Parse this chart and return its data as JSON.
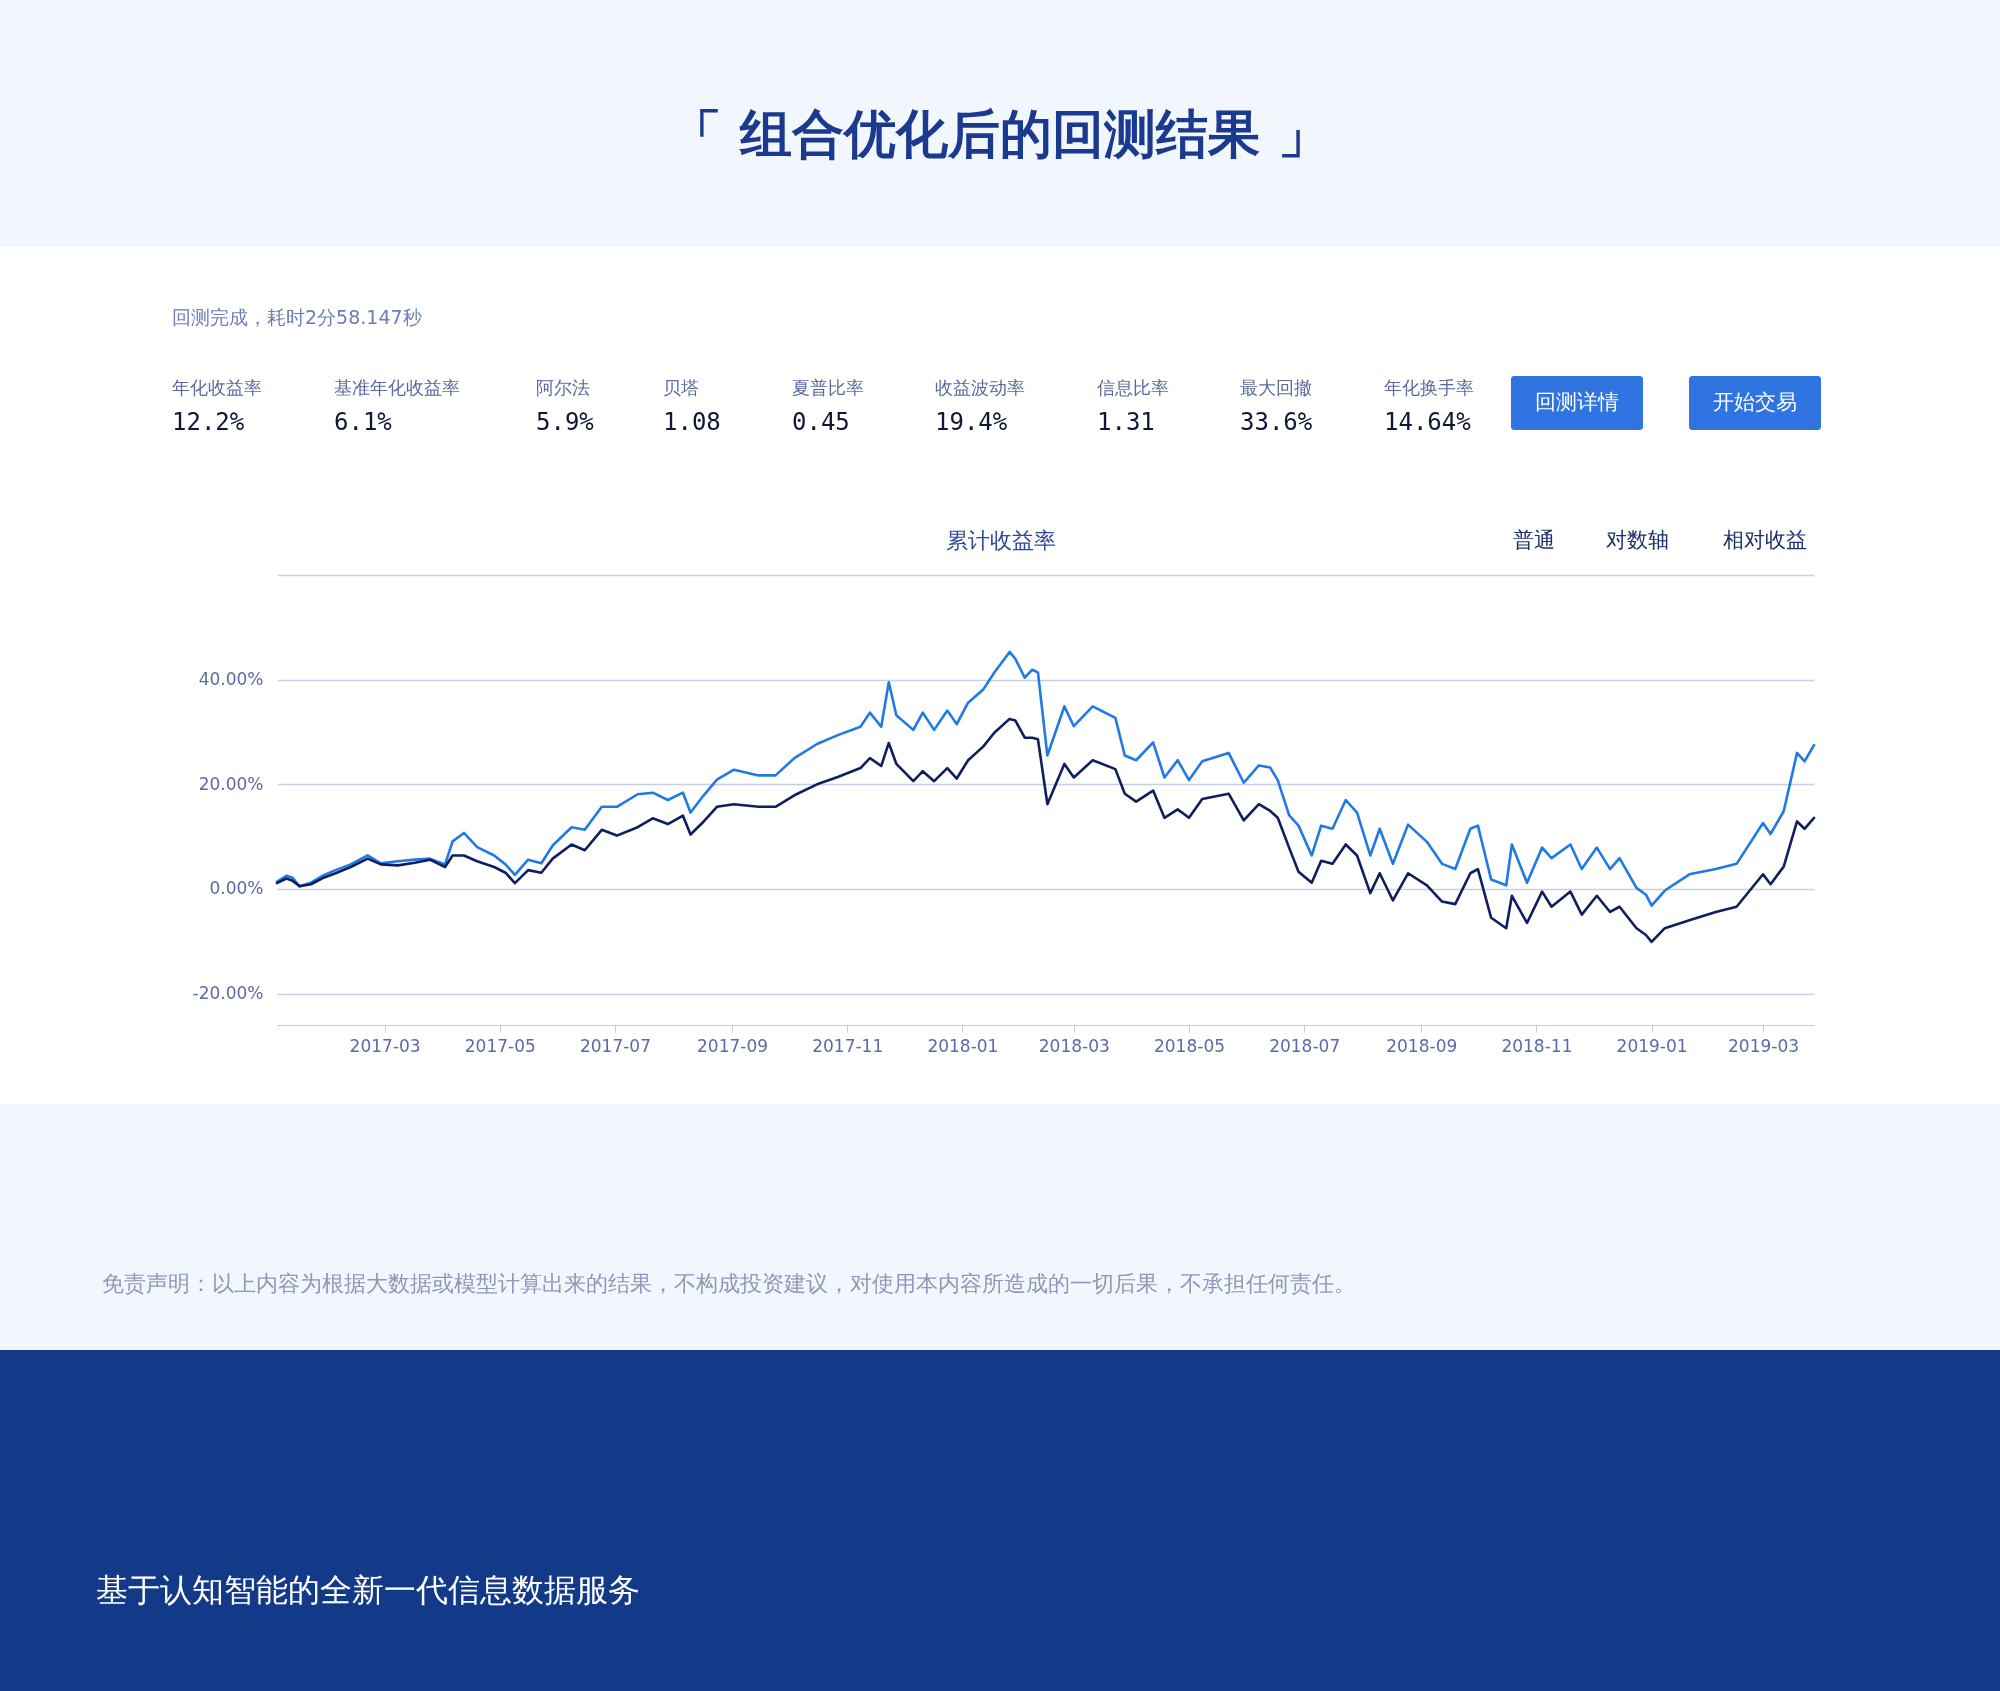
{
  "chart_data": {
    "type": "line",
    "title": "累计收益率",
    "x": [
      "2017-01-03",
      "2017-01-08",
      "2017-01-11",
      "2017-01-15",
      "2017-01-21",
      "2017-01-28",
      "2017-02-03",
      "2017-02-11",
      "2017-02-20",
      "2017-02-27",
      "2017-03-08",
      "2017-03-17",
      "2017-03-25",
      "2017-04-02",
      "2017-04-06",
      "2017-04-12",
      "2017-04-19",
      "2017-04-28",
      "2017-05-04",
      "2017-05-09",
      "2017-05-16",
      "2017-05-23",
      "2017-05-29",
      "2017-06-08",
      "2017-06-15",
      "2017-06-24",
      "2017-07-02",
      "2017-07-13",
      "2017-07-21",
      "2017-07-29",
      "2017-08-06",
      "2017-08-10",
      "2017-08-17",
      "2017-08-24",
      "2017-09-02",
      "2017-09-15",
      "2017-09-24",
      "2017-10-04",
      "2017-10-16",
      "2017-10-27",
      "2017-11-08",
      "2017-11-13",
      "2017-11-19",
      "2017-11-23",
      "2017-11-27",
      "2017-12-06",
      "2017-12-11",
      "2017-12-17",
      "2017-12-24",
      "2017-12-29",
      "2018-01-04",
      "2018-01-12",
      "2018-01-18",
      "2018-01-26",
      "2018-01-29",
      "2018-02-03",
      "2018-02-07",
      "2018-02-10",
      "2018-02-15",
      "2018-02-24",
      "2018-03-01",
      "2018-03-11",
      "2018-03-23",
      "2018-03-28",
      "2018-04-03",
      "2018-04-12",
      "2018-04-18",
      "2018-04-25",
      "2018-05-01",
      "2018-05-08",
      "2018-05-22",
      "2018-05-30",
      "2018-06-07",
      "2018-06-13",
      "2018-06-17",
      "2018-06-23",
      "2018-06-28",
      "2018-07-05",
      "2018-07-10",
      "2018-07-16",
      "2018-07-23",
      "2018-07-29",
      "2018-08-05",
      "2018-08-10",
      "2018-08-17",
      "2018-08-25",
      "2018-09-04",
      "2018-09-12",
      "2018-09-19",
      "2018-09-27",
      "2018-10-01",
      "2018-10-08",
      "2018-10-16",
      "2018-10-19",
      "2018-10-27",
      "2018-11-04",
      "2018-11-09",
      "2018-11-19",
      "2018-11-25",
      "2018-12-03",
      "2018-12-10",
      "2018-12-15",
      "2018-12-24",
      "2018-12-29",
      "2019-01-01",
      "2019-01-08",
      "2019-01-21",
      "2019-02-04",
      "2019-02-15",
      "2019-03-01",
      "2019-03-05",
      "2019-03-12",
      "2019-03-19",
      "2019-03-23",
      "2019-03-28"
    ],
    "series": [
      {
        "color": "#1f7ae6",
        "values": [
          1.4,
          2.5,
          2.2,
          0.5,
          1.2,
          2.7,
          3.6,
          4.7,
          6.4,
          4.9,
          5.3,
          5.6,
          5.8,
          4.7,
          9.1,
          10.7,
          8.0,
          6.4,
          4.7,
          2.7,
          5.6,
          4.9,
          8.3,
          11.8,
          11.3,
          15.7,
          15.7,
          18.1,
          18.4,
          17.0,
          18.4,
          14.6,
          17.9,
          20.9,
          22.8,
          21.7,
          21.7,
          25.0,
          27.7,
          29.4,
          31.0,
          33.7,
          31.0,
          39.5,
          33.2,
          30.4,
          33.7,
          30.4,
          34.1,
          31.5,
          35.6,
          38.1,
          41.4,
          45.3,
          44.0,
          40.4,
          41.9,
          41.4,
          25.5,
          34.9,
          31.1,
          34.9,
          32.7,
          25.5,
          24.6,
          28.0,
          21.3,
          24.6,
          20.8,
          24.4,
          26.0,
          20.3,
          23.6,
          23.2,
          20.8,
          14.1,
          12.1,
          6.4,
          12.1,
          11.5,
          17.0,
          14.6,
          6.4,
          11.5,
          4.8,
          12.3,
          9.0,
          4.8,
          3.8,
          11.5,
          12.1,
          1.8,
          0.7,
          8.5,
          1.2,
          7.9,
          5.9,
          8.5,
          3.8,
          7.9,
          3.8,
          5.9,
          0.2,
          -1.1,
          -3.2,
          -0.3,
          2.8,
          3.8,
          4.8,
          12.6,
          10.5,
          14.9,
          26.0,
          24.4,
          27.5
        ]
      },
      {
        "color": "#0f1f5e",
        "values": [
          1.1,
          2.0,
          1.6,
          0.5,
          0.9,
          2.2,
          3.0,
          4.2,
          5.8,
          4.7,
          4.5,
          5.0,
          5.6,
          4.2,
          6.4,
          6.4,
          5.3,
          4.2,
          3.1,
          1.1,
          3.6,
          3.1,
          5.8,
          8.5,
          7.4,
          11.3,
          10.2,
          11.8,
          13.5,
          12.4,
          14.0,
          10.4,
          12.9,
          15.7,
          16.2,
          15.7,
          15.7,
          17.9,
          20.0,
          21.4,
          23.1,
          25.0,
          23.5,
          27.9,
          23.9,
          20.6,
          22.5,
          20.6,
          23.1,
          21.1,
          24.6,
          27.2,
          29.9,
          32.5,
          32.2,
          28.9,
          28.9,
          28.6,
          16.2,
          23.9,
          21.3,
          24.6,
          22.9,
          18.2,
          16.7,
          18.8,
          13.6,
          15.2,
          13.6,
          17.2,
          18.2,
          13.1,
          16.2,
          14.9,
          13.6,
          7.9,
          3.3,
          1.2,
          5.4,
          4.8,
          8.5,
          6.4,
          -0.8,
          3.0,
          -2.2,
          3.0,
          0.7,
          -2.4,
          -2.9,
          3.0,
          3.8,
          -5.5,
          -7.5,
          -1.3,
          -6.5,
          -0.5,
          -3.4,
          -0.5,
          -4.9,
          -1.3,
          -4.4,
          -3.4,
          -7.5,
          -8.8,
          -10.1,
          -7.5,
          -6.0,
          -4.4,
          -3.4,
          2.8,
          0.9,
          4.3,
          12.9,
          11.5,
          13.6
        ]
      }
    ],
    "xlim": [
      "2017-01-03",
      "2019-03-28"
    ],
    "xticks": [
      {
        "value": "2017-03-01",
        "label": "2017-03"
      },
      {
        "value": "2017-05-01",
        "label": "2017-05"
      },
      {
        "value": "2017-07-01",
        "label": "2017-07"
      },
      {
        "value": "2017-09-01",
        "label": "2017-09"
      },
      {
        "value": "2017-11-01",
        "label": "2017-11"
      },
      {
        "value": "2018-01-01",
        "label": "2018-01"
      },
      {
        "value": "2018-03-01",
        "label": "2018-03"
      },
      {
        "value": "2018-05-01",
        "label": "2018-05"
      },
      {
        "value": "2018-07-01",
        "label": "2018-07"
      },
      {
        "value": "2018-09-01",
        "label": "2018-09"
      },
      {
        "value": "2018-11-01",
        "label": "2018-11"
      },
      {
        "value": "2019-01-01",
        "label": "2019-01"
      },
      {
        "value": "2019-03-01",
        "label": "2019-03"
      }
    ],
    "ylim": [
      -26,
      60
    ],
    "yticks": [
      {
        "value": -20,
        "label": "-20.00%"
      },
      {
        "value": 0,
        "label": "0.00%"
      },
      {
        "value": 20,
        "label": "20.00%"
      },
      {
        "value": 40,
        "label": "40.00%"
      },
      {
        "value": 60,
        "label": null
      }
    ],
    "grid": "y",
    "annotations": [
      "「 组合优化后的回测结果 」",
      "回测完成，耗时2分58.147秒",
      "年化收益率",
      "12.2%",
      "基准年化收益率",
      "6.1%",
      "阿尔法",
      "5.9%",
      "贝塔",
      "1.08",
      "夏普比率",
      "0.45",
      "收益波动率",
      "19.4%",
      "信息比率",
      "1.31",
      "最大回撤",
      "33.6%",
      "年化换手率",
      "14.64%",
      "回测详情",
      "开始交易",
      "普通",
      "对数轴",
      "相对收益",
      "免责声明：以上内容为根据大数据或模型计算出来的结果，不构成投资建议，对使用本内容所造成的一切后果，不承担任何责任。",
      "基于认知智能的全新一代信息数据服务"
    ]
  }
}
